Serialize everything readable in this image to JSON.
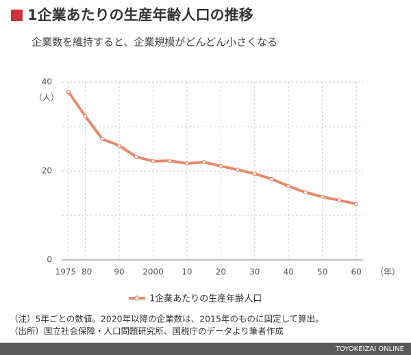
{
  "chart_data": {
    "type": "line",
    "title": "1企業あたりの生産年齢人口の推移",
    "subtitle": "企業数を維持すると、企業規模がどんどん小さくなる",
    "y_label": "（人）",
    "x_label": "（年）",
    "x": [
      1975,
      1980,
      1985,
      1990,
      1995,
      2000,
      2005,
      2010,
      2015,
      2020,
      2025,
      2030,
      2035,
      2040,
      2045,
      2050,
      2055,
      2060
    ],
    "series": [
      {
        "name": "1企業あたりの生産年齢人口",
        "color": "#e8896a",
        "values": [
          37.8,
          32.3,
          27.2,
          25.7,
          23.2,
          22.2,
          22.3,
          21.7,
          22.0,
          21.1,
          20.3,
          19.4,
          18.2,
          16.6,
          15.2,
          14.2,
          13.4,
          12.6
        ]
      }
    ],
    "xlim": [
      1973,
      2062
    ],
    "xticks": [
      {
        "value": 1975,
        "label": "1975"
      },
      {
        "value": 1980,
        "label": "80"
      },
      {
        "value": 1990,
        "label": "90"
      },
      2000,
      {
        "value": 2010,
        "label": "10"
      },
      {
        "value": 2020,
        "label": "20"
      },
      {
        "value": 2030,
        "label": "30"
      },
      {
        "value": 2040,
        "label": "40"
      },
      {
        "value": 2050,
        "label": "50"
      },
      {
        "value": 2060,
        "label": "60"
      }
    ],
    "ylim": [
      0,
      40
    ],
    "yticks": [
      0,
      20,
      40
    ],
    "ygrid": [
      10,
      20,
      30,
      40
    ],
    "grid": true,
    "legend": "bottom",
    "notes": [
      "（注）5年ごとの数値。2020年以降の企業数は、2015年のものに固定して算出。",
      "（出所）国立社会保障・人口問題研究所、国税庁のデータより筆者作成"
    ],
    "footer": "TOYOKEIZAI ONLINE"
  }
}
